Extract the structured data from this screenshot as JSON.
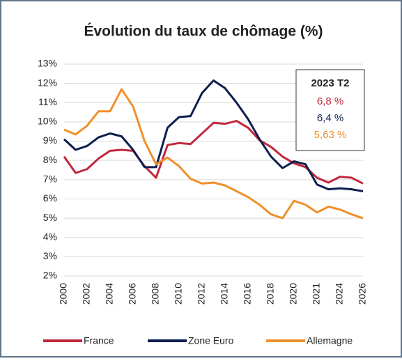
{
  "chart_data": {
    "type": "line",
    "title": "Évolution du taux de chômage (%)",
    "categories": [
      "2000",
      null,
      "2002",
      null,
      "2004",
      null,
      "2006",
      null,
      "2008",
      null,
      "2010",
      null,
      "2012",
      null,
      "2014",
      null,
      "2016",
      null,
      "2018",
      null,
      "2020",
      null,
      "2021",
      null,
      "2024",
      null,
      "2026"
    ],
    "series": [
      {
        "name": "France",
        "color": "#c0283e",
        "values": [
          8.2,
          7.35,
          7.55,
          8.1,
          8.5,
          8.55,
          8.5,
          7.7,
          7.1,
          8.8,
          8.9,
          8.85,
          9.4,
          9.95,
          9.9,
          10.05,
          9.7,
          9.05,
          8.7,
          8.2,
          7.85,
          7.65,
          7.1,
          6.85,
          7.15,
          7.1,
          6.8
        ]
      },
      {
        "name": "Zone Euro",
        "color": "#0d1f4f",
        "values": [
          9.1,
          8.55,
          8.75,
          9.2,
          9.4,
          9.25,
          8.55,
          7.65,
          7.65,
          9.7,
          10.25,
          10.3,
          11.5,
          12.15,
          11.75,
          11.0,
          10.15,
          9.1,
          8.2,
          7.6,
          7.95,
          7.8,
          6.75,
          6.5,
          6.55,
          6.5,
          6.4
        ]
      },
      {
        "name": "Allemagne",
        "color": "#f0902a",
        "values": [
          9.6,
          9.35,
          9.8,
          10.55,
          10.55,
          11.7,
          10.8,
          9.0,
          7.8,
          8.15,
          7.7,
          7.05,
          6.8,
          6.85,
          6.7,
          6.4,
          6.1,
          5.7,
          5.2,
          5.0,
          5.9,
          5.7,
          5.3,
          5.6,
          5.45,
          5.2,
          5.0
        ]
      }
    ],
    "ylim": [
      2,
      13
    ],
    "yticks": [
      {
        "value": 2,
        "label": "2%"
      },
      {
        "value": 3,
        "label": "3%"
      },
      {
        "value": 4,
        "label": "4%"
      },
      {
        "value": 5,
        "label": "5%"
      },
      {
        "value": 6,
        "label": "6%"
      },
      {
        "value": 7,
        "label": "7%"
      },
      {
        "value": 8,
        "label": "8%"
      },
      {
        "value": 9,
        "label": "9%"
      },
      {
        "value": 10,
        "label": "10%"
      },
      {
        "value": 11,
        "label": "11%"
      },
      {
        "value": 12,
        "label": "12%"
      },
      {
        "value": 13,
        "label": "13%"
      }
    ],
    "grid": true,
    "legend": "bottom",
    "annotation": {
      "title": "2023 T2",
      "lines": [
        {
          "text": "6,8 %",
          "color": "#c0283e"
        },
        {
          "text": "6,4 %",
          "color": "#0d1f4f"
        },
        {
          "text": "5,63 %",
          "color": "#f0902a"
        }
      ]
    }
  }
}
